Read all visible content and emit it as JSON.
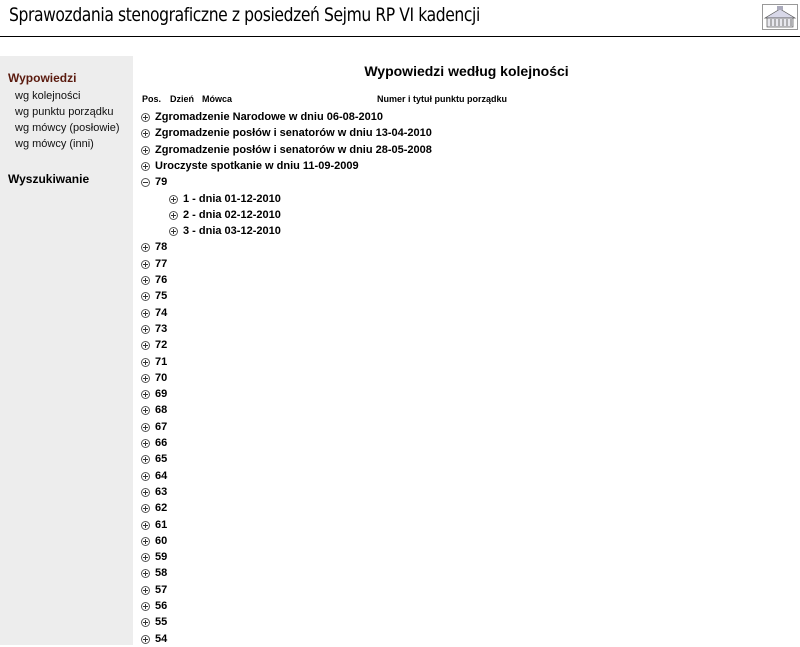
{
  "header": {
    "title": "Sprawozdania stenograficzne z posiedzeń Sejmu RP VI kadencji",
    "logo_icon": "sejm-building-logo-icon"
  },
  "sidebar": {
    "heading_active": "Wypowiedzi",
    "items": [
      {
        "label": "wg kolejności"
      },
      {
        "label": "wg punktu porządku"
      },
      {
        "label": "wg mówcy (posłowie)"
      },
      {
        "label": "wg mówcy (inni)"
      }
    ],
    "heading_search": "Wyszukiwanie",
    "active_color": "#5a1a0e",
    "background": "#ededed"
  },
  "main": {
    "title": "Wypowiedzi według kolejności",
    "columns": {
      "pos": "Pos.",
      "day": "Dzień",
      "speaker": "Mówca",
      "item": "Numer  i tytuł punktu porządku"
    },
    "tree": [
      {
        "label": "Zgromadzenie Narodowe w dniu 06-08-2010",
        "level": 0,
        "expanded": false
      },
      {
        "label": "Zgromadzenie posłów i senatorów w dniu 13-04-2010",
        "level": 0,
        "expanded": false
      },
      {
        "label": "Zgromadzenie posłów i senatorów w dniu 28-05-2008",
        "level": 0,
        "expanded": false
      },
      {
        "label": "Uroczyste spotkanie w dniu 11-09-2009",
        "level": 0,
        "expanded": false
      },
      {
        "label": "79",
        "level": 0,
        "expanded": true
      },
      {
        "label": "1 - dnia 01-12-2010",
        "level": 1,
        "expanded": false
      },
      {
        "label": "2 - dnia 02-12-2010",
        "level": 1,
        "expanded": false
      },
      {
        "label": "3 - dnia 03-12-2010",
        "level": 1,
        "expanded": false
      },
      {
        "label": "78",
        "level": 0,
        "expanded": false
      },
      {
        "label": "77",
        "level": 0,
        "expanded": false
      },
      {
        "label": "76",
        "level": 0,
        "expanded": false
      },
      {
        "label": "75",
        "level": 0,
        "expanded": false
      },
      {
        "label": "74",
        "level": 0,
        "expanded": false
      },
      {
        "label": "73",
        "level": 0,
        "expanded": false
      },
      {
        "label": "72",
        "level": 0,
        "expanded": false
      },
      {
        "label": "71",
        "level": 0,
        "expanded": false
      },
      {
        "label": "70",
        "level": 0,
        "expanded": false
      },
      {
        "label": "69",
        "level": 0,
        "expanded": false
      },
      {
        "label": "68",
        "level": 0,
        "expanded": false
      },
      {
        "label": "67",
        "level": 0,
        "expanded": false
      },
      {
        "label": "66",
        "level": 0,
        "expanded": false
      },
      {
        "label": "65",
        "level": 0,
        "expanded": false
      },
      {
        "label": "64",
        "level": 0,
        "expanded": false
      },
      {
        "label": "63",
        "level": 0,
        "expanded": false
      },
      {
        "label": "62",
        "level": 0,
        "expanded": false
      },
      {
        "label": "61",
        "level": 0,
        "expanded": false
      },
      {
        "label": "60",
        "level": 0,
        "expanded": false
      },
      {
        "label": "59",
        "level": 0,
        "expanded": false
      },
      {
        "label": "58",
        "level": 0,
        "expanded": false
      },
      {
        "label": "57",
        "level": 0,
        "expanded": false
      },
      {
        "label": "56",
        "level": 0,
        "expanded": false
      },
      {
        "label": "55",
        "level": 0,
        "expanded": false
      },
      {
        "label": "54",
        "level": 0,
        "expanded": false
      }
    ]
  }
}
